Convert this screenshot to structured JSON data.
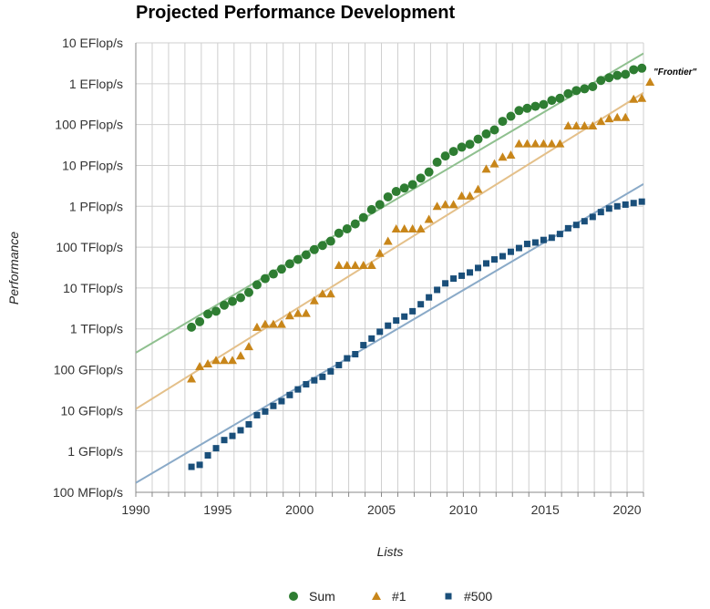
{
  "chart_data": {
    "type": "scatter",
    "title": "Projected Performance Development",
    "xlabel": "Lists",
    "ylabel": "Performance",
    "y_scale": "log",
    "xlim": [
      1990,
      2021
    ],
    "ylim": [
      100000000.0,
      1e+19
    ],
    "x_ticks": [
      1990,
      1995,
      2000,
      2005,
      2010,
      2015,
      2020
    ],
    "y_ticks": [
      {
        "value": 100000000.0,
        "label": "100 MFlop/s"
      },
      {
        "value": 1000000000.0,
        "label": "1 GFlop/s"
      },
      {
        "value": 10000000000.0,
        "label": "10 GFlop/s"
      },
      {
        "value": 100000000000.0,
        "label": "100 GFlop/s"
      },
      {
        "value": 1000000000000.0,
        "label": "1 TFlop/s"
      },
      {
        "value": 10000000000000.0,
        "label": "10 TFlop/s"
      },
      {
        "value": 100000000000000.0,
        "label": "100 TFlop/s"
      },
      {
        "value": 1000000000000000.0,
        "label": "1 PFlop/s"
      },
      {
        "value": 1e+16,
        "label": "10 PFlop/s"
      },
      {
        "value": 1e+17,
        "label": "100 PFlop/s"
      },
      {
        "value": 1e+18,
        "label": "1 EFlop/s"
      },
      {
        "value": 1e+19,
        "label": "10 EFlop/s"
      }
    ],
    "grid": true,
    "legend_position": "bottom",
    "series": [
      {
        "name": "Sum",
        "color": "#2e7d32",
        "marker": "circle",
        "trend_color": "#8fc08f",
        "trend": {
          "x": [
            1990,
            2021
          ],
          "y": [
            260000000000.0,
            5.5e+18
          ]
        },
        "x": [
          1993.4,
          1993.9,
          1994.4,
          1994.9,
          1995.4,
          1995.9,
          1996.4,
          1996.9,
          1997.4,
          1997.9,
          1998.4,
          1998.9,
          1999.4,
          1999.9,
          2000.4,
          2000.9,
          2001.4,
          2001.9,
          2002.4,
          2002.9,
          2003.4,
          2003.9,
          2004.4,
          2004.9,
          2005.4,
          2005.9,
          2006.4,
          2006.9,
          2007.4,
          2007.9,
          2008.4,
          2008.9,
          2009.4,
          2009.9,
          2010.4,
          2010.9,
          2011.4,
          2011.9,
          2012.4,
          2012.9,
          2013.4,
          2013.9,
          2014.4,
          2014.9,
          2015.4,
          2015.9,
          2016.4,
          2016.9,
          2017.4,
          2017.9,
          2018.4,
          2018.9,
          2019.4,
          2019.9,
          2020.4,
          2020.9
        ],
        "y": [
          1100000000000.0,
          1500000000000.0,
          2300000000000.0,
          2700000000000.0,
          3800000000000.0,
          4700000000000.0,
          5800000000000.0,
          7800000000000.0,
          12000000000000.0,
          17000000000000.0,
          22000000000000.0,
          29000000000000.0,
          39000000000000.0,
          50000000000000.0,
          65000000000000.0,
          87000000000000.0,
          110000000000000.0,
          140000000000000.0,
          220000000000000.0,
          280000000000000.0,
          370000000000000.0,
          530000000000000.0,
          830000000000000.0,
          1100000000000000.0,
          1700000000000000.0,
          2300000000000000.0,
          2800000000000000.0,
          3400000000000000.0,
          4900000000000000.0,
          6900000000000000.0,
          1.2e+16,
          1.7e+16,
          2.2e+16,
          2.8e+16,
          3.3e+16,
          4.4e+16,
          5.9e+16,
          7.4e+16,
          1.2e+17,
          1.6e+17,
          2.2e+17,
          2.5e+17,
          2.8e+17,
          3.1e+17,
          3.9e+17,
          4.4e+17,
          5.7e+17,
          6.8e+17,
          7.5e+17,
          8.5e+17,
          1.2e+18,
          1.4e+18,
          1.6e+18,
          1.7e+18,
          2.2e+18,
          2.4e+18
        ]
      },
      {
        "name": "#1",
        "color": "#c8861a",
        "marker": "triangle",
        "trend_color": "#e4c08a",
        "trend": {
          "x": [
            1990,
            2021
          ],
          "y": [
            11000000000.0,
            6e+17
          ]
        },
        "x": [
          1993.4,
          1993.9,
          1994.4,
          1994.9,
          1995.4,
          1995.9,
          1996.4,
          1996.9,
          1997.4,
          1997.9,
          1998.4,
          1998.9,
          1999.4,
          1999.9,
          2000.4,
          2000.9,
          2001.4,
          2001.9,
          2002.4,
          2002.9,
          2003.4,
          2003.9,
          2004.4,
          2004.9,
          2005.4,
          2005.9,
          2006.4,
          2006.9,
          2007.4,
          2007.9,
          2008.4,
          2008.9,
          2009.4,
          2009.9,
          2010.4,
          2010.9,
          2011.4,
          2011.9,
          2012.4,
          2012.9,
          2013.4,
          2013.9,
          2014.4,
          2014.9,
          2015.4,
          2015.9,
          2016.4,
          2016.9,
          2017.4,
          2017.9,
          2018.4,
          2018.9,
          2019.4,
          2019.9,
          2020.4,
          2020.9,
          2021.4
        ],
        "y": [
          60000000000.0,
          120000000000.0,
          140000000000.0,
          170000000000.0,
          170000000000.0,
          170000000000.0,
          220000000000.0,
          370000000000.0,
          1100000000000.0,
          1300000000000.0,
          1300000000000.0,
          1300000000000.0,
          2100000000000.0,
          2400000000000.0,
          2400000000000.0,
          4900000000000.0,
          7200000000000.0,
          7200000000000.0,
          36000000000000.0,
          36000000000000.0,
          36000000000000.0,
          36000000000000.0,
          36000000000000.0,
          71000000000000.0,
          140000000000000.0,
          280000000000000.0,
          280000000000000.0,
          280000000000000.0,
          280000000000000.0,
          480000000000000.0,
          1000000000000000.0,
          1100000000000000.0,
          1100000000000000.0,
          1800000000000000.0,
          1800000000000000.0,
          2600000000000000.0,
          8200000000000000.0,
          1.1e+16,
          1.6e+16,
          1.8e+16,
          3.4e+16,
          3.4e+16,
          3.4e+16,
          3.4e+16,
          3.4e+16,
          3.4e+16,
          9.3e+16,
          9.3e+16,
          9.3e+16,
          9.3e+16,
          1.2e+17,
          1.4e+17,
          1.5e+17,
          1.5e+17,
          4.2e+17,
          4.4e+17,
          1.1e+18
        ]
      },
      {
        "name": "#500",
        "color": "#1a4f7a",
        "marker": "square",
        "trend_color": "#8aaac8",
        "trend": {
          "x": [
            1990,
            2021
          ],
          "y": [
            170000000.0,
            3500000000000000.0
          ]
        },
        "x": [
          1993.4,
          1993.9,
          1994.4,
          1994.9,
          1995.4,
          1995.9,
          1996.4,
          1996.9,
          1997.4,
          1997.9,
          1998.4,
          1998.9,
          1999.4,
          1999.9,
          2000.4,
          2000.9,
          2001.4,
          2001.9,
          2002.4,
          2002.9,
          2003.4,
          2003.9,
          2004.4,
          2004.9,
          2005.4,
          2005.9,
          2006.4,
          2006.9,
          2007.4,
          2007.9,
          2008.4,
          2008.9,
          2009.4,
          2009.9,
          2010.4,
          2010.9,
          2011.4,
          2011.9,
          2012.4,
          2012.9,
          2013.4,
          2013.9,
          2014.4,
          2014.9,
          2015.4,
          2015.9,
          2016.4,
          2016.9,
          2017.4,
          2017.9,
          2018.4,
          2018.9,
          2019.4,
          2019.9,
          2020.4,
          2020.9
        ],
        "y": [
          420000000.0,
          470000000.0,
          800000000.0,
          1200000000.0,
          1900000000.0,
          2400000000.0,
          3300000000.0,
          4600000000.0,
          7700000000.0,
          9500000000.0,
          13000000000.0,
          17000000000.0,
          24000000000.0,
          33000000000.0,
          44000000000.0,
          55000000000.0,
          67000000000.0,
          91000000000.0,
          130000000000.0,
          190000000000.0,
          240000000000.0,
          400000000000.0,
          580000000000.0,
          850000000000.0,
          1200000000000.0,
          1600000000000.0,
          2000000000000.0,
          2700000000000.0,
          4000000000000.0,
          5900000000000.0,
          9000000000000.0,
          13000000000000.0,
          17000000000000.0,
          20000000000000.0,
          24000000000000.0,
          31000000000000.0,
          40000000000000.0,
          50000000000000.0,
          60000000000000.0,
          77000000000000.0,
          95000000000000.0,
          120000000000000.0,
          130000000000000.0,
          150000000000000.0,
          170000000000000.0,
          210000000000000.0,
          290000000000000.0,
          350000000000000.0,
          430000000000000.0,
          550000000000000.0,
          720000000000000.0,
          880000000000000.0,
          1000000000000000.0,
          1100000000000000.0,
          1200000000000000.0,
          1300000000000000.0
        ]
      }
    ],
    "annotations": [
      {
        "text": "\"Frontier\"",
        "x": 2021.4,
        "y": 1.1e+18
      }
    ]
  }
}
